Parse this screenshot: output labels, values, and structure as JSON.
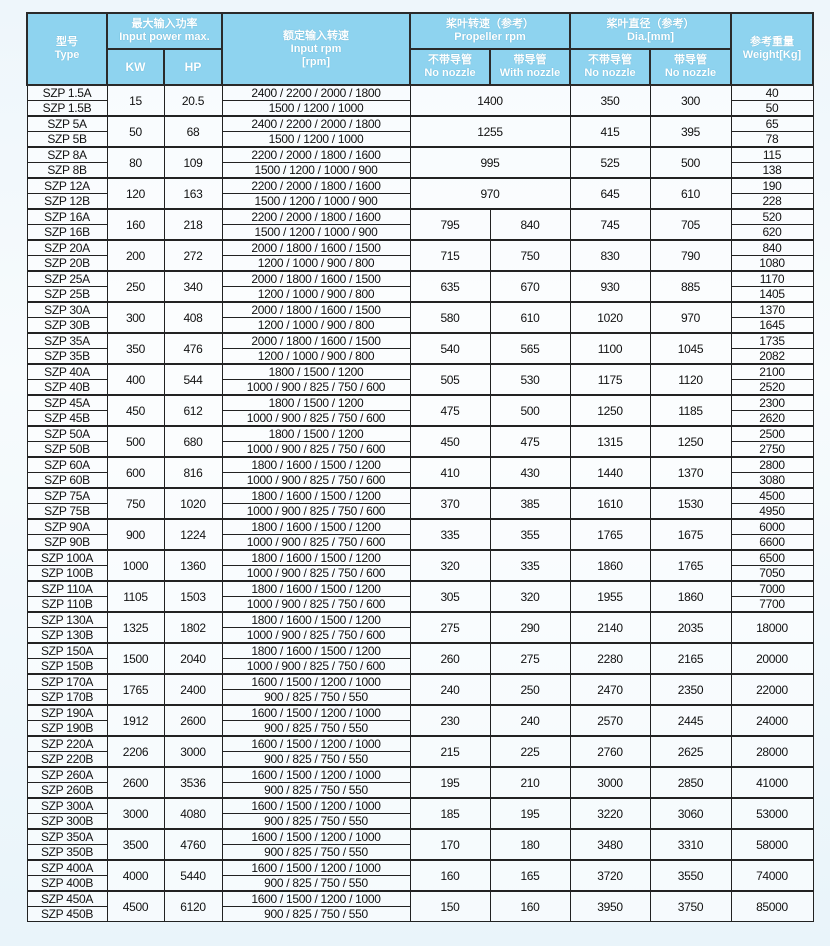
{
  "header": {
    "type_cn": "型号",
    "type_en": "Type",
    "power_cn": "最大输入功率",
    "power_en": "Input power max.",
    "kw": "KW",
    "hp": "HP",
    "rpm_cn": "额定输入转速",
    "rpm_en": "Input rpm",
    "rpm_unit": "[rpm]",
    "prop_cn": "桨叶转速（参考）",
    "prop_en": "Propeller rpm",
    "dia_cn": "桨叶直径（参考）",
    "dia_en": "Dia.[mm]",
    "weight_cn": "参考重量",
    "weight_en": "Weight[Kg]",
    "no_nozzle_cn": "不带导管",
    "no_nozzle_en": "No nozzle",
    "with_nozzle_cn": "带导管",
    "with_nozzle_en": "With nozzle",
    "dia_no_cn": "不带导管",
    "dia_no_en": "No nozzle",
    "dia_with_cn": "带导管",
    "dia_with_en": "No nozzle"
  },
  "colors": {
    "header_bg": "#8ed3ef",
    "header_text": "#ffffff",
    "border": "#222222"
  },
  "rows": [
    {
      "types": [
        "SZP 1.5A",
        "SZP 1.5B"
      ],
      "kw": "15",
      "hp": "20.5",
      "rpm": [
        "2400 / 2200 / 2000 / 1800",
        "1500 / 1200 / 1000"
      ],
      "prop": [
        "1400"
      ],
      "dia": [
        "350",
        "300"
      ],
      "weight": [
        "40",
        "50"
      ]
    },
    {
      "types": [
        "SZP 5A",
        "SZP 5B"
      ],
      "kw": "50",
      "hp": "68",
      "rpm": [
        "2400 / 2200 / 2000 / 1800",
        "1500 / 1200 / 1000"
      ],
      "prop": [
        "1255"
      ],
      "dia": [
        "415",
        "395"
      ],
      "weight": [
        "65",
        "78"
      ]
    },
    {
      "types": [
        "SZP 8A",
        "SZP 8B"
      ],
      "kw": "80",
      "hp": "109",
      "rpm": [
        "2200 / 2000 / 1800 / 1600",
        "1500 / 1200 / 1000 / 900"
      ],
      "prop": [
        "995"
      ],
      "dia": [
        "525",
        "500"
      ],
      "weight": [
        "115",
        "138"
      ]
    },
    {
      "types": [
        "SZP 12A",
        "SZP 12B"
      ],
      "kw": "120",
      "hp": "163",
      "rpm": [
        "2200 / 2000 / 1800 / 1600",
        "1500 / 1200 / 1000 / 900"
      ],
      "prop": [
        "970"
      ],
      "dia": [
        "645",
        "610"
      ],
      "weight": [
        "190",
        "228"
      ]
    },
    {
      "types": [
        "SZP 16A",
        "SZP 16B"
      ],
      "kw": "160",
      "hp": "218",
      "rpm": [
        "2200 / 2000 / 1800 / 1600",
        "1500 / 1200 / 1000 / 900"
      ],
      "prop": [
        "795",
        "840"
      ],
      "dia": [
        "745",
        "705"
      ],
      "weight": [
        "520",
        "620"
      ]
    },
    {
      "types": [
        "SZP 20A",
        "SZP 20B"
      ],
      "kw": "200",
      "hp": "272",
      "rpm": [
        "2000 / 1800 / 1600 / 1500",
        "1200 / 1000 / 900 / 800"
      ],
      "prop": [
        "715",
        "750"
      ],
      "dia": [
        "830",
        "790"
      ],
      "weight": [
        "840",
        "1080"
      ]
    },
    {
      "types": [
        "SZP 25A",
        "SZP 25B"
      ],
      "kw": "250",
      "hp": "340",
      "rpm": [
        "2000 / 1800 / 1600 / 1500",
        "1200 / 1000 / 900 / 800"
      ],
      "prop": [
        "635",
        "670"
      ],
      "dia": [
        "930",
        "885"
      ],
      "weight": [
        "1170",
        "1405"
      ]
    },
    {
      "types": [
        "SZP 30A",
        "SZP 30B"
      ],
      "kw": "300",
      "hp": "408",
      "rpm": [
        "2000 / 1800 / 1600 / 1500",
        "1200 / 1000 / 900 / 800"
      ],
      "prop": [
        "580",
        "610"
      ],
      "dia": [
        "1020",
        "970"
      ],
      "weight": [
        "1370",
        "1645"
      ]
    },
    {
      "types": [
        "SZP 35A",
        "SZP 35B"
      ],
      "kw": "350",
      "hp": "476",
      "rpm": [
        "2000 / 1800 / 1600 / 1500",
        "1200 / 1000 / 900 / 800"
      ],
      "prop": [
        "540",
        "565"
      ],
      "dia": [
        "1100",
        "1045"
      ],
      "weight": [
        "1735",
        "2082"
      ]
    },
    {
      "types": [
        "SZP 40A",
        "SZP 40B"
      ],
      "kw": "400",
      "hp": "544",
      "rpm": [
        "1800 / 1500 / 1200",
        "1000 / 900 / 825 / 750 / 600"
      ],
      "prop": [
        "505",
        "530"
      ],
      "dia": [
        "1175",
        "1120"
      ],
      "weight": [
        "2100",
        "2520"
      ]
    },
    {
      "types": [
        "SZP 45A",
        "SZP 45B"
      ],
      "kw": "450",
      "hp": "612",
      "rpm": [
        "1800 / 1500 / 1200",
        "1000 / 900 / 825 / 750 / 600"
      ],
      "prop": [
        "475",
        "500"
      ],
      "dia": [
        "1250",
        "1185"
      ],
      "weight": [
        "2300",
        "2620"
      ]
    },
    {
      "types": [
        "SZP 50A",
        "SZP 50B"
      ],
      "kw": "500",
      "hp": "680",
      "rpm": [
        "1800 / 1500 / 1200",
        "1000 / 900 / 825 / 750 / 600"
      ],
      "prop": [
        "450",
        "475"
      ],
      "dia": [
        "1315",
        "1250"
      ],
      "weight": [
        "2500",
        "2750"
      ]
    },
    {
      "types": [
        "SZP 60A",
        "SZP 60B"
      ],
      "kw": "600",
      "hp": "816",
      "rpm": [
        "1800 / 1600 / 1500 / 1200",
        "1000 / 900 / 825 / 750 / 600"
      ],
      "prop": [
        "410",
        "430"
      ],
      "dia": [
        "1440",
        "1370"
      ],
      "weight": [
        "2800",
        "3080"
      ]
    },
    {
      "types": [
        "SZP 75A",
        "SZP 75B"
      ],
      "kw": "750",
      "hp": "1020",
      "rpm": [
        "1800 / 1600 / 1500 / 1200",
        "1000 / 900 / 825 / 750 / 600"
      ],
      "prop": [
        "370",
        "385"
      ],
      "dia": [
        "1610",
        "1530"
      ],
      "weight": [
        "4500",
        "4950"
      ]
    },
    {
      "types": [
        "SZP 90A",
        "SZP 90B"
      ],
      "kw": "900",
      "hp": "1224",
      "rpm": [
        "1800 / 1600 / 1500 / 1200",
        "1000 / 900 / 825 / 750 / 600"
      ],
      "prop": [
        "335",
        "355"
      ],
      "dia": [
        "1765",
        "1675"
      ],
      "weight": [
        "6000",
        "6600"
      ]
    },
    {
      "types": [
        "SZP 100A",
        "SZP 100B"
      ],
      "kw": "1000",
      "hp": "1360",
      "rpm": [
        "1800 / 1600 / 1500 / 1200",
        "1000 / 900 / 825 / 750 / 600"
      ],
      "prop": [
        "320",
        "335"
      ],
      "dia": [
        "1860",
        "1765"
      ],
      "weight": [
        "6500",
        "7050"
      ]
    },
    {
      "types": [
        "SZP 110A",
        "SZP 110B"
      ],
      "kw": "1105",
      "hp": "1503",
      "rpm": [
        "1800 / 1600 / 1500 / 1200",
        "1000 / 900 / 825 / 750 / 600"
      ],
      "prop": [
        "305",
        "320"
      ],
      "dia": [
        "1955",
        "1860"
      ],
      "weight": [
        "7000",
        "7700"
      ]
    },
    {
      "types": [
        "SZP 130A",
        "SZP 130B"
      ],
      "kw": "1325",
      "hp": "1802",
      "rpm": [
        "1800 / 1600 / 1500 / 1200",
        "1000 / 900 / 825 / 750 / 600"
      ],
      "prop": [
        "275",
        "290"
      ],
      "dia": [
        "2140",
        "2035"
      ],
      "weight": [
        "18000"
      ]
    },
    {
      "types": [
        "SZP 150A",
        "SZP 150B"
      ],
      "kw": "1500",
      "hp": "2040",
      "rpm": [
        "1800 / 1600 / 1500 / 1200",
        "1000 / 900 / 825 / 750 / 600"
      ],
      "prop": [
        "260",
        "275"
      ],
      "dia": [
        "2280",
        "2165"
      ],
      "weight": [
        "20000"
      ]
    },
    {
      "types": [
        "SZP 170A",
        "SZP 170B"
      ],
      "kw": "1765",
      "hp": "2400",
      "rpm": [
        "1600 / 1500 / 1200 / 1000",
        "900 / 825 / 750 / 550"
      ],
      "prop": [
        "240",
        "250"
      ],
      "dia": [
        "2470",
        "2350"
      ],
      "weight": [
        "22000"
      ]
    },
    {
      "types": [
        "SZP 190A",
        "SZP 190B"
      ],
      "kw": "1912",
      "hp": "2600",
      "rpm": [
        "1600 / 1500 / 1200 / 1000",
        "900 / 825 / 750 / 550"
      ],
      "prop": [
        "230",
        "240"
      ],
      "dia": [
        "2570",
        "2445"
      ],
      "weight": [
        "24000"
      ]
    },
    {
      "types": [
        "SZP 220A",
        "SZP 220B"
      ],
      "kw": "2206",
      "hp": "3000",
      "rpm": [
        "1600 / 1500 / 1200 / 1000",
        "900 / 825 / 750 / 550"
      ],
      "prop": [
        "215",
        "225"
      ],
      "dia": [
        "2760",
        "2625"
      ],
      "weight": [
        "28000"
      ]
    },
    {
      "types": [
        "SZP 260A",
        "SZP 260B"
      ],
      "kw": "2600",
      "hp": "3536",
      "rpm": [
        "1600 / 1500 / 1200 / 1000",
        "900 / 825 / 750 / 550"
      ],
      "prop": [
        "195",
        "210"
      ],
      "dia": [
        "3000",
        "2850"
      ],
      "weight": [
        "41000"
      ]
    },
    {
      "types": [
        "SZP 300A",
        "SZP 300B"
      ],
      "kw": "3000",
      "hp": "4080",
      "rpm": [
        "1600 / 1500 / 1200 / 1000",
        "900 / 825 / 750 / 550"
      ],
      "prop": [
        "185",
        "195"
      ],
      "dia": [
        "3220",
        "3060"
      ],
      "weight": [
        "53000"
      ]
    },
    {
      "types": [
        "SZP 350A",
        "SZP 350B"
      ],
      "kw": "3500",
      "hp": "4760",
      "rpm": [
        "1600 / 1500 / 1200 / 1000",
        "900 / 825 / 750 / 550"
      ],
      "prop": [
        "170",
        "180"
      ],
      "dia": [
        "3480",
        "3310"
      ],
      "weight": [
        "58000"
      ]
    },
    {
      "types": [
        "SZP 400A",
        "SZP 400B"
      ],
      "kw": "4000",
      "hp": "5440",
      "rpm": [
        "1600 / 1500 / 1200 / 1000",
        "900 / 825 / 750 / 550"
      ],
      "prop": [
        "160",
        "165"
      ],
      "dia": [
        "3720",
        "3550"
      ],
      "weight": [
        "74000"
      ]
    },
    {
      "types": [
        "SZP 450A",
        "SZP 450B"
      ],
      "kw": "4500",
      "hp": "6120",
      "rpm": [
        "1600 / 1500 / 1200 / 1000",
        "900 / 825 / 750 / 550"
      ],
      "prop": [
        "150",
        "160"
      ],
      "dia": [
        "3950",
        "3750"
      ],
      "weight": [
        "85000"
      ]
    }
  ]
}
